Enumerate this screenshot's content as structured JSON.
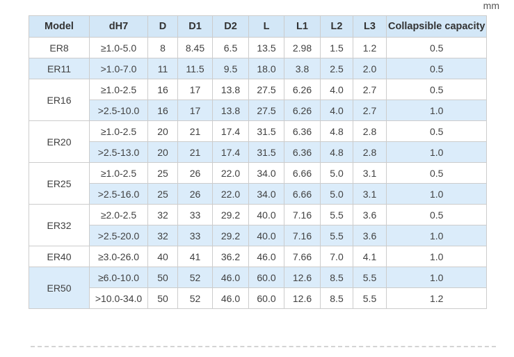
{
  "unit_label": "mm",
  "colors": {
    "header_bg": "#d3e7f7",
    "stripe_bg": "#dbecfa",
    "row_bg": "#ffffff",
    "border_color": "#cccccc",
    "cell_text": "#404040",
    "header_text": "#333333",
    "unit_text": "#555555",
    "dashed_line": "#d4d4d4"
  },
  "table": {
    "columns": [
      "Model",
      "dH7",
      "D",
      "D1",
      "D2",
      "L",
      "L1",
      "L2",
      "L3",
      "Collapsible capacity"
    ],
    "groups": [
      {
        "model": "ER8",
        "rows": [
          [
            "≥1.0-5.0",
            "8",
            "8.45",
            "6.5",
            "13.5",
            "2.98",
            "1.5",
            "1.2",
            "0.5"
          ]
        ]
      },
      {
        "model": "ER11",
        "rows": [
          [
            ">1.0-7.0",
            "11",
            "11.5",
            "9.5",
            "18.0",
            "3.8",
            "2.5",
            "2.0",
            "0.5"
          ]
        ]
      },
      {
        "model": "ER16",
        "rows": [
          [
            "≥1.0-2.5",
            "16",
            "17",
            "13.8",
            "27.5",
            "6.26",
            "4.0",
            "2.7",
            "0.5"
          ],
          [
            ">2.5-10.0",
            "16",
            "17",
            "13.8",
            "27.5",
            "6.26",
            "4.0",
            "2.7",
            "1.0"
          ]
        ]
      },
      {
        "model": "ER20",
        "rows": [
          [
            "≥1.0-2.5",
            "20",
            "21",
            "17.4",
            "31.5",
            "6.36",
            "4.8",
            "2.8",
            "0.5"
          ],
          [
            ">2.5-13.0",
            "20",
            "21",
            "17.4",
            "31.5",
            "6.36",
            "4.8",
            "2.8",
            "1.0"
          ]
        ]
      },
      {
        "model": "ER25",
        "rows": [
          [
            "≥1.0-2.5",
            "25",
            "26",
            "22.0",
            "34.0",
            "6.66",
            "5.0",
            "3.1",
            "0.5"
          ],
          [
            ">2.5-16.0",
            "25",
            "26",
            "22.0",
            "34.0",
            "6.66",
            "5.0",
            "3.1",
            "1.0"
          ]
        ]
      },
      {
        "model": "ER32",
        "rows": [
          [
            "≥2.0-2.5",
            "32",
            "33",
            "29.2",
            "40.0",
            "7.16",
            "5.5",
            "3.6",
            "0.5"
          ],
          [
            ">2.5-20.0",
            "32",
            "33",
            "29.2",
            "40.0",
            "7.16",
            "5.5",
            "3.6",
            "1.0"
          ]
        ]
      },
      {
        "model": "ER40",
        "rows": [
          [
            "≥3.0-26.0",
            "40",
            "41",
            "36.2",
            "46.0",
            "7.66",
            "7.0",
            "4.1",
            "1.0"
          ]
        ]
      },
      {
        "model": "ER50",
        "rows": [
          [
            "≥6.0-10.0",
            "50",
            "52",
            "46.0",
            "60.0",
            "12.6",
            "8.5",
            "5.5",
            "1.0"
          ],
          [
            ">10.0-34.0",
            "50",
            "52",
            "46.0",
            "60.0",
            "12.6",
            "8.5",
            "5.5",
            "1.2"
          ]
        ]
      }
    ]
  }
}
